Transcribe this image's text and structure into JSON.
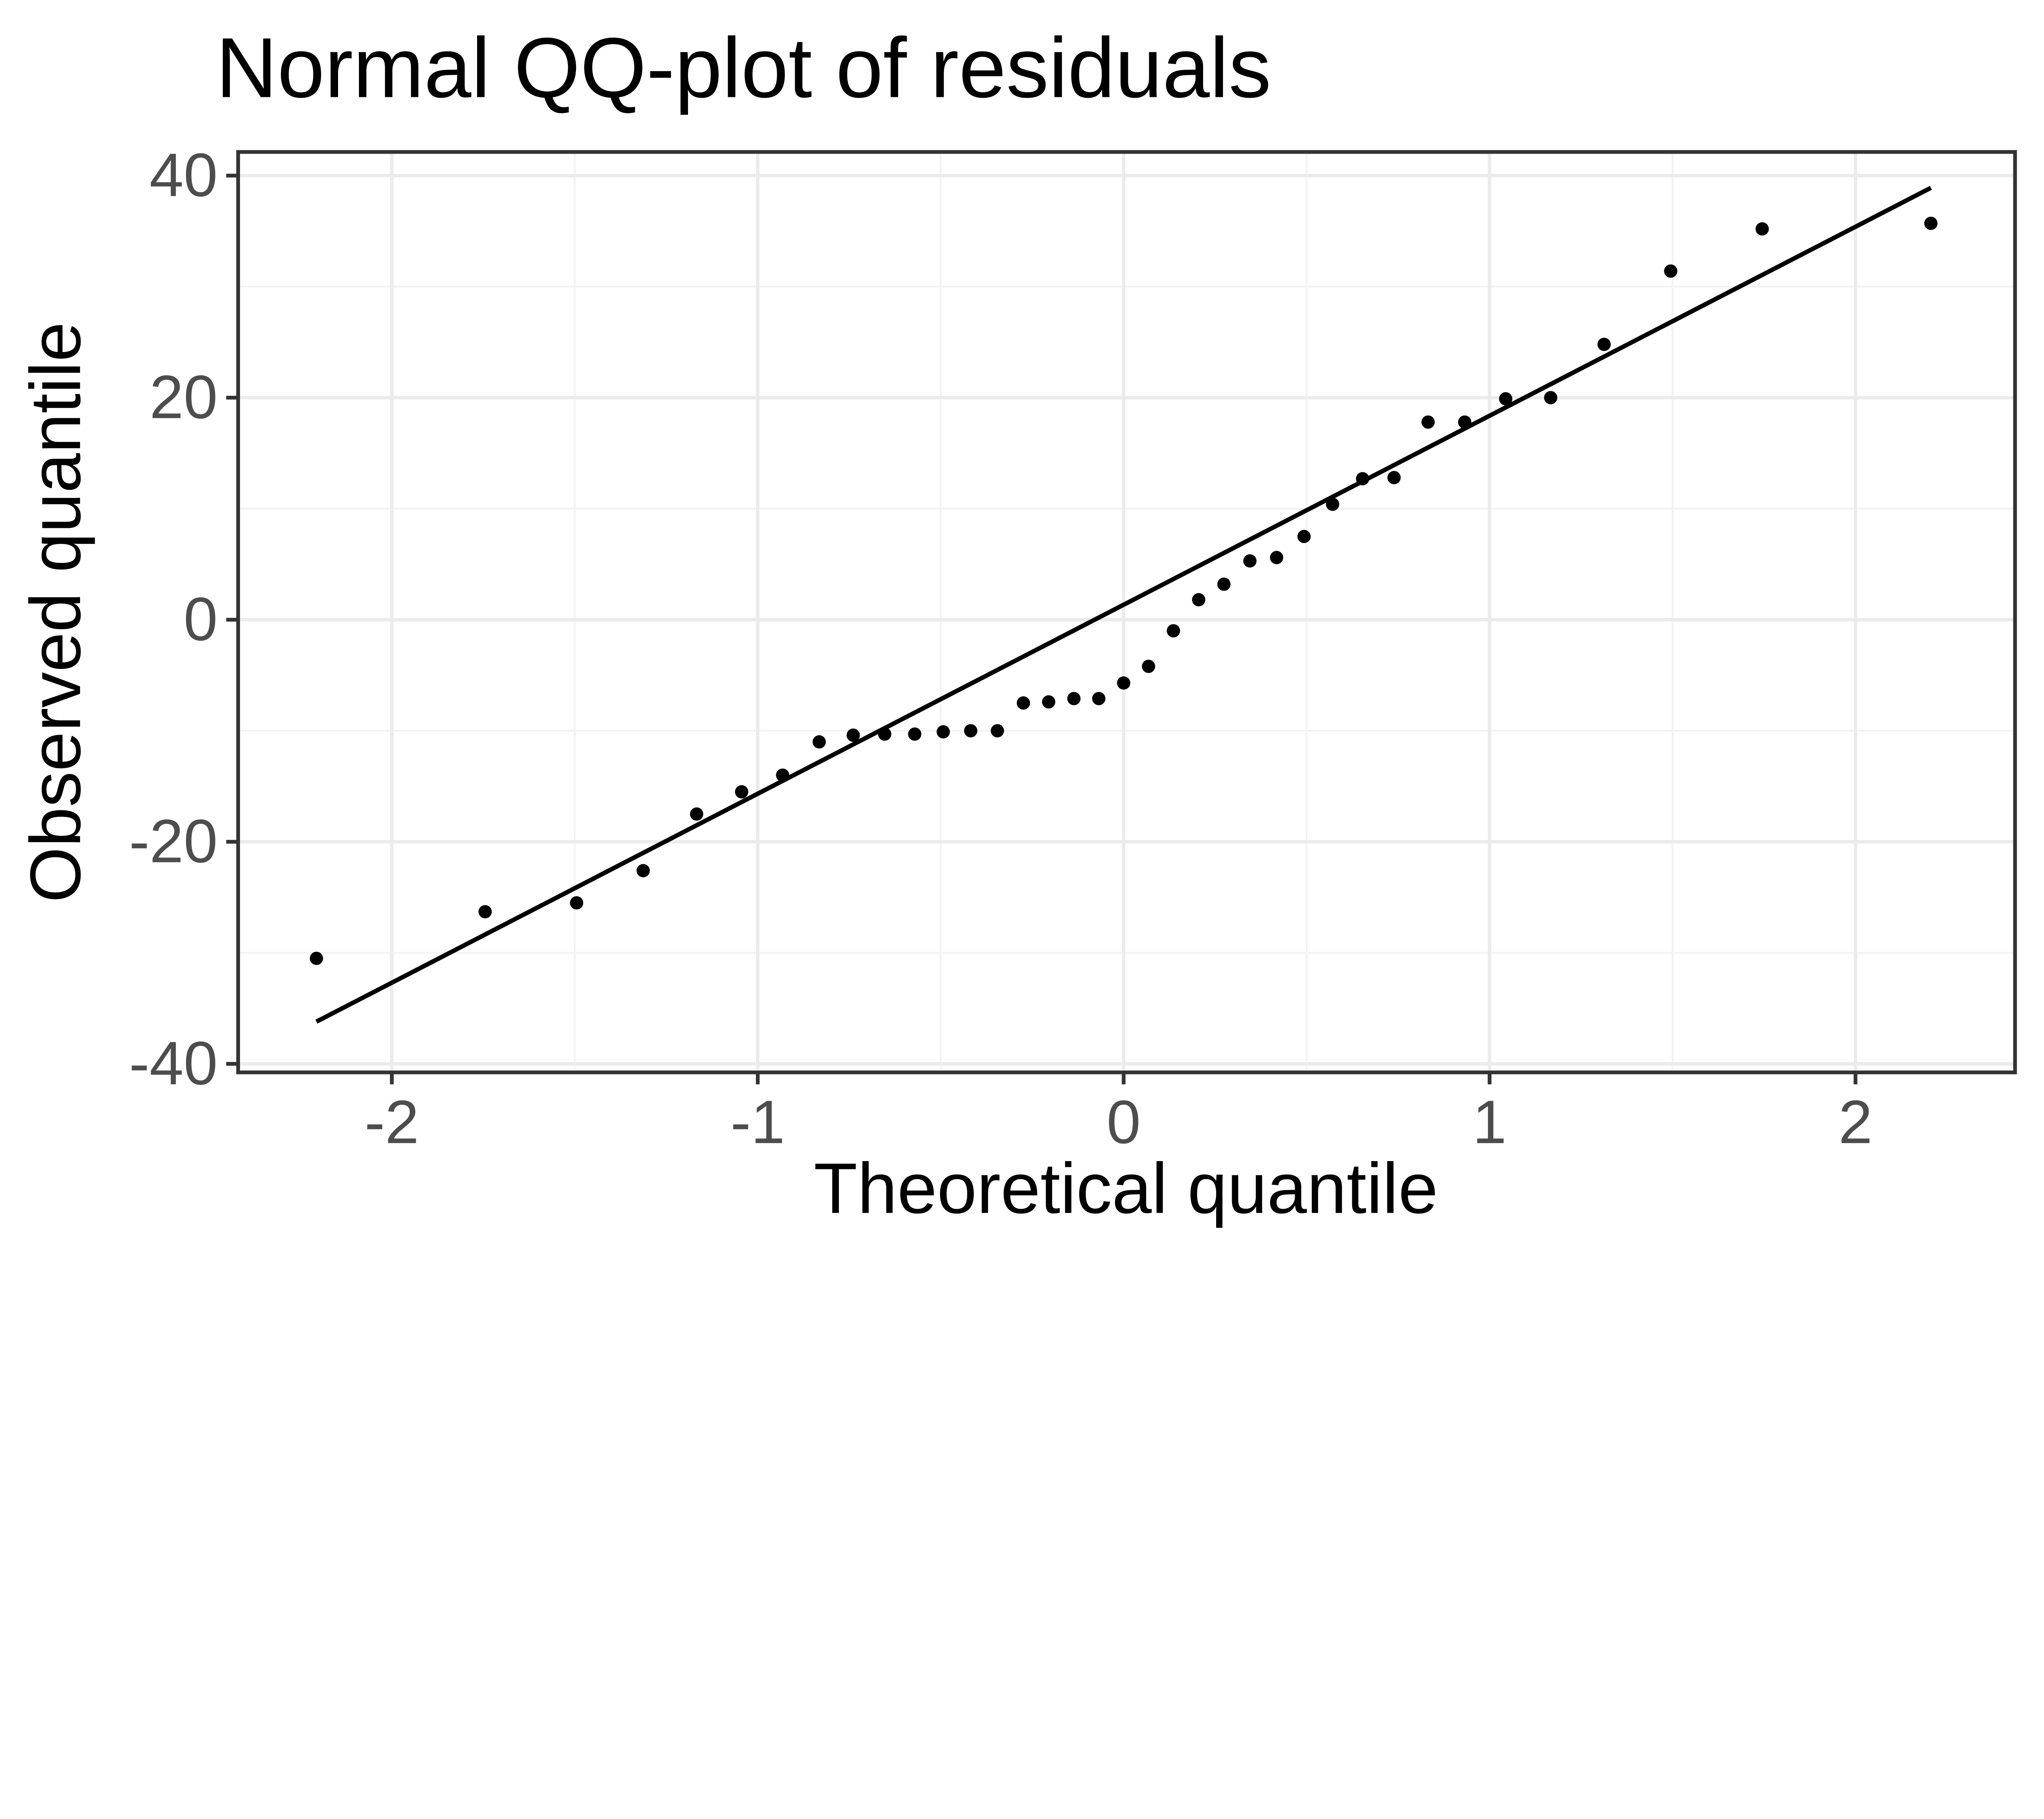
{
  "chart_data": {
    "type": "scatter",
    "title": "Normal QQ-plot of residuals",
    "xlabel": "Theoretical quantile",
    "ylabel": "Observed quantile",
    "xlim": [
      -2.42,
      2.436
    ],
    "ylim": [
      -40.77,
      42.13
    ],
    "x_ticks": [
      -2,
      -1,
      0,
      1,
      2
    ],
    "y_ticks": [
      -40,
      -20,
      0,
      20,
      40
    ],
    "x_minor_gridlines": [
      -1.5,
      -0.5,
      0.5,
      1.5
    ],
    "y_minor_gridlines": [
      -30,
      -10,
      10,
      30
    ],
    "grid": "major and minor on, white panel, dark border",
    "legend_position": "none",
    "points": [
      [
        -2.206,
        -30.5
      ],
      [
        -1.745,
        -26.3
      ],
      [
        -1.495,
        -25.5
      ],
      [
        -1.313,
        -22.6
      ],
      [
        -1.167,
        -17.5
      ],
      [
        -1.044,
        -15.5
      ],
      [
        -0.932,
        -14.0
      ],
      [
        -0.832,
        -11.0
      ],
      [
        -0.739,
        -10.4
      ],
      [
        -0.653,
        -10.3
      ],
      [
        -0.571,
        -10.3
      ],
      [
        -0.493,
        -10.1
      ],
      [
        -0.418,
        -10.0
      ],
      [
        -0.345,
        -10.0
      ],
      [
        -0.274,
        -7.5
      ],
      [
        -0.205,
        -7.4
      ],
      [
        -0.136,
        -7.1
      ],
      [
        -0.068,
        -7.1
      ],
      [
        0.0,
        -5.7
      ],
      [
        0.068,
        -4.2
      ],
      [
        0.136,
        -1.0
      ],
      [
        0.205,
        1.8
      ],
      [
        0.274,
        3.2
      ],
      [
        0.345,
        5.3
      ],
      [
        0.418,
        5.6
      ],
      [
        0.493,
        7.5
      ],
      [
        0.571,
        10.4
      ],
      [
        0.653,
        12.7
      ],
      [
        0.739,
        12.8
      ],
      [
        0.832,
        17.8
      ],
      [
        0.932,
        17.8
      ],
      [
        1.044,
        19.9
      ],
      [
        1.167,
        20.0
      ],
      [
        1.313,
        24.8
      ],
      [
        1.495,
        31.4
      ],
      [
        1.745,
        35.2
      ],
      [
        2.206,
        35.7
      ]
    ],
    "reference_line": {
      "x1": -2.206,
      "y1": -36.2,
      "x2": 2.206,
      "y2": 38.9
    },
    "colors": {
      "background": "#ffffff",
      "panel_background": "#ffffff",
      "panel_border": "#333333",
      "grid_major": "#ebebeb",
      "grid_minor": "#f3f3f3",
      "tick_mark": "#333333",
      "tick_label": "#4d4d4d",
      "title_text": "#000000",
      "point": "#000000",
      "reference_line": "#000000"
    }
  }
}
